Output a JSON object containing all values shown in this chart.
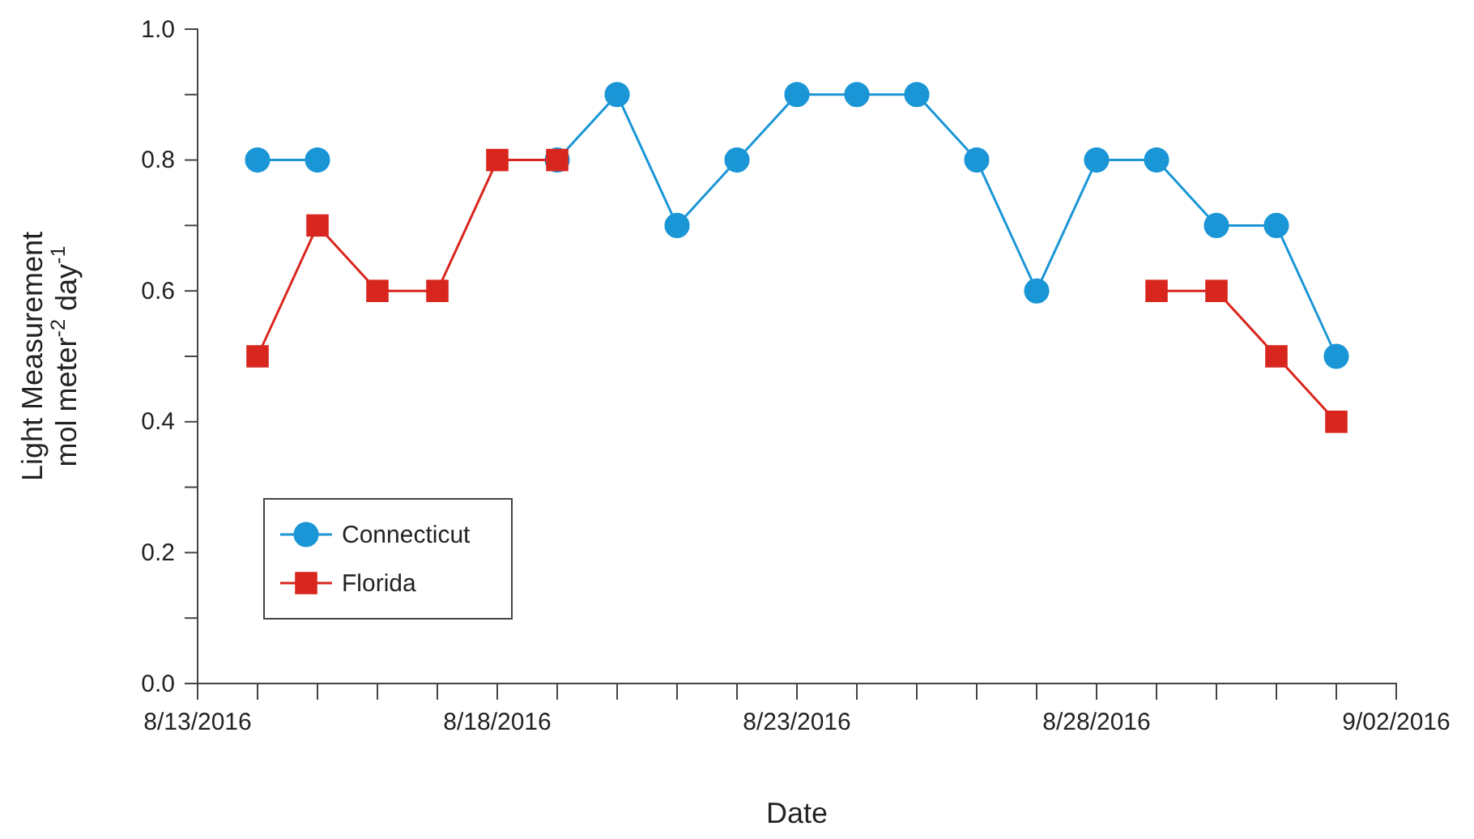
{
  "chart_data": {
    "type": "line",
    "xlabel": "Date",
    "ylabel": "Light Measurement\nmol meter$^{-2}$ day$^{-1}$",
    "x": [
      "2016-08-14",
      "2016-08-15",
      "2016-08-16",
      "2016-08-17",
      "2016-08-18",
      "2016-08-19",
      "2016-08-20",
      "2016-08-21",
      "2016-08-22",
      "2016-08-23",
      "2016-08-24",
      "2016-08-25",
      "2016-08-26",
      "2016-08-27",
      "2016-08-28",
      "2016-08-29",
      "2016-08-30",
      "2016-08-31",
      "2016-09-01"
    ],
    "series": [
      {
        "name": "Connecticut",
        "color": "#1a96d6",
        "marker": "circle",
        "values": [
          0.8,
          0.8,
          null,
          null,
          null,
          0.8,
          0.9,
          0.7,
          0.8,
          0.9,
          0.9,
          0.9,
          0.8,
          0.6,
          0.8,
          0.8,
          0.7,
          0.7,
          0.5
        ]
      },
      {
        "name": "Florida",
        "color": "#d8261e",
        "marker": "square",
        "values": [
          0.5,
          0.7,
          0.6,
          0.6,
          0.8,
          0.8,
          null,
          null,
          null,
          null,
          null,
          null,
          null,
          null,
          null,
          0.6,
          0.6,
          0.5,
          0.4
        ]
      }
    ],
    "xlim": [
      "2016-08-13",
      "2016-09-02"
    ],
    "xticks": [
      {
        "value": "2016-08-13",
        "label": "8/13/2016"
      },
      {
        "value": "2016-08-14",
        "label": null
      },
      {
        "value": "2016-08-15",
        "label": null
      },
      {
        "value": "2016-08-16",
        "label": null
      },
      {
        "value": "2016-08-17",
        "label": null
      },
      {
        "value": "2016-08-18",
        "label": "8/18/2016"
      },
      {
        "value": "2016-08-19",
        "label": null
      },
      {
        "value": "2016-08-20",
        "label": null
      },
      {
        "value": "2016-08-21",
        "label": null
      },
      {
        "value": "2016-08-22",
        "label": null
      },
      {
        "value": "2016-08-23",
        "label": "8/23/2016"
      },
      {
        "value": "2016-08-24",
        "label": null
      },
      {
        "value": "2016-08-25",
        "label": null
      },
      {
        "value": "2016-08-26",
        "label": null
      },
      {
        "value": "2016-08-27",
        "label": null
      },
      {
        "value": "2016-08-28",
        "label": "8/28/2016"
      },
      {
        "value": "2016-08-29",
        "label": null
      },
      {
        "value": "2016-08-30",
        "label": null
      },
      {
        "value": "2016-08-31",
        "label": null
      },
      {
        "value": "2016-09-01",
        "label": null
      },
      {
        "value": "2016-09-02",
        "label": "9/02/2016"
      }
    ],
    "ylim": [
      0,
      1
    ],
    "yticks": [
      {
        "value": 0,
        "label": "0.0"
      },
      {
        "value": 0.1,
        "label": null
      },
      {
        "value": 0.2,
        "label": "0.2"
      },
      {
        "value": 0.3,
        "label": null
      },
      {
        "value": 0.4,
        "label": "0.4"
      },
      {
        "value": 0.5,
        "label": null
      },
      {
        "value": 0.6,
        "label": "0.6"
      },
      {
        "value": 0.7,
        "label": null
      },
      {
        "value": 0.8,
        "label": "0.8"
      },
      {
        "value": 0.9,
        "label": null
      },
      {
        "value": 1,
        "label": "1.0"
      }
    ],
    "grid": false,
    "legend": "bottom left",
    "line_style": "solid"
  }
}
